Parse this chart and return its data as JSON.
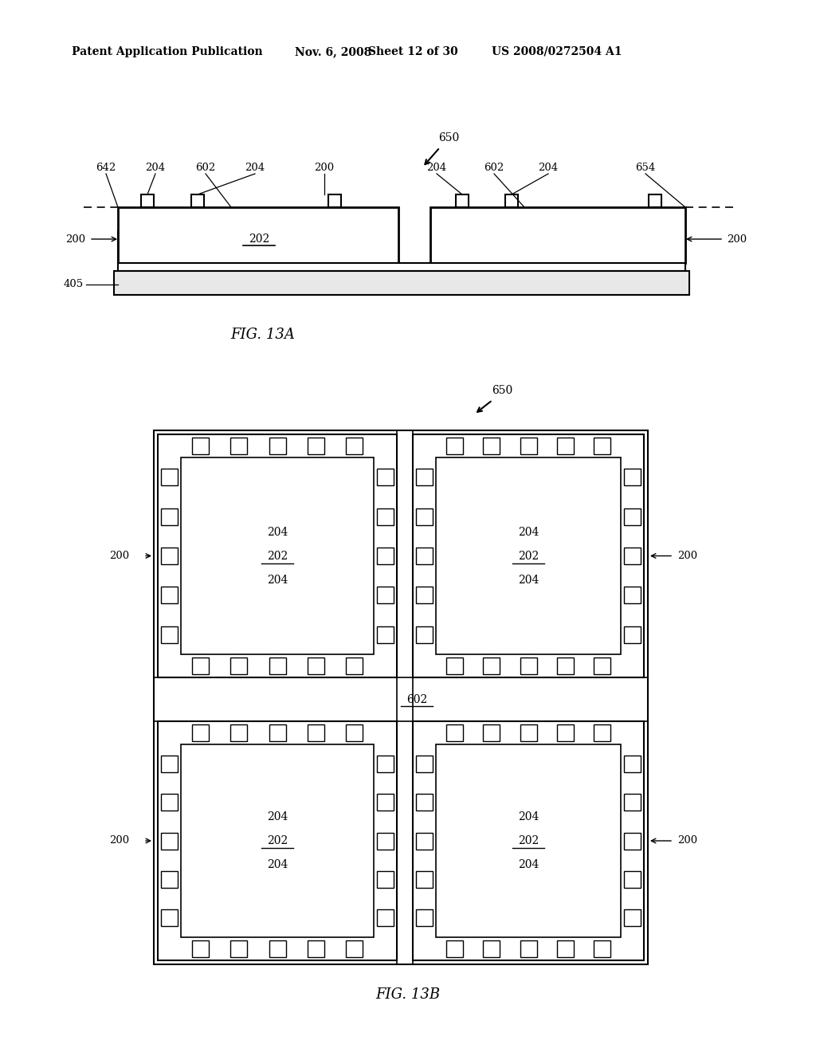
{
  "bg_color": "#ffffff",
  "header_text": "Patent Application Publication",
  "header_date": "Nov. 6, 2008",
  "header_sheet": "Sheet 12 of 30",
  "header_patent": "US 2008/0272504 A1",
  "fig13a_label": "FIG. 13A",
  "fig13b_label": "FIG. 13B",
  "line_color": "#000000"
}
